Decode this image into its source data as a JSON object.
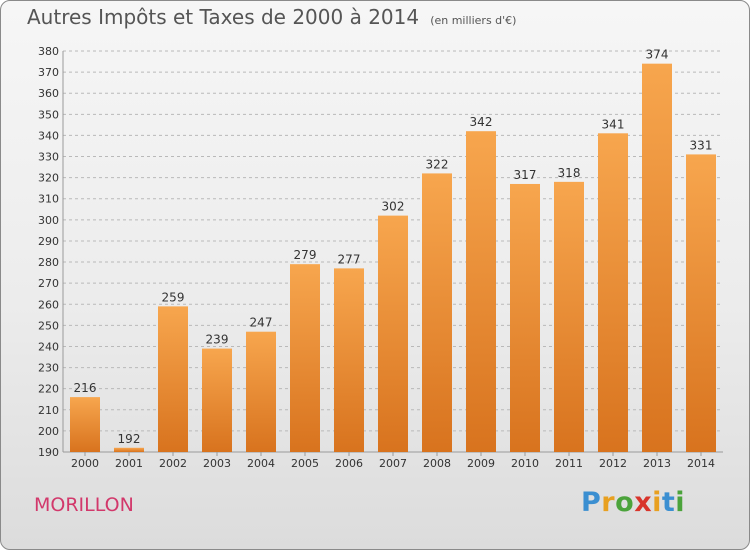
{
  "title": "Autres Impôts et Taxes de 2000 à 2014",
  "unit": "(en milliers d'€)",
  "commune": "MORILLON",
  "logo": {
    "letters": [
      "P",
      "r",
      "o",
      "x",
      "i",
      "t",
      "i"
    ],
    "colors": [
      "#3b8fd1",
      "#e8a020",
      "#4ba33b",
      "#d8342b",
      "#e8a020",
      "#3b8fd1",
      "#4ba33b"
    ]
  },
  "colors": {
    "bar_top": "#f7a64e",
    "bar_bottom": "#d8731e",
    "grid": "#b9b9b9",
    "commune": "#d2386b"
  },
  "chart_data": {
    "type": "bar",
    "categories": [
      "2000",
      "2001",
      "2002",
      "2003",
      "2004",
      "2005",
      "2006",
      "2007",
      "2008",
      "2009",
      "2010",
      "2011",
      "2012",
      "2013",
      "2014"
    ],
    "values": [
      216,
      192,
      259,
      239,
      247,
      279,
      277,
      302,
      322,
      342,
      317,
      318,
      341,
      374,
      331
    ],
    "data_labels": [
      "216",
      "192",
      "259",
      "239",
      "247",
      "279",
      "277",
      "302",
      "322",
      "342",
      "317",
      "318",
      "341",
      "374",
      "331"
    ],
    "y_ticks": [
      "190",
      "200",
      "210",
      "220",
      "230",
      "240",
      "250",
      "260",
      "270",
      "280",
      "290",
      "300",
      "310",
      "320",
      "330",
      "340",
      "350",
      "360",
      "370",
      "380"
    ],
    "ylim": [
      190,
      380
    ],
    "grid": true,
    "title": "Autres Impôts et Taxes de 2000 à 2014",
    "xlabel": "",
    "ylabel": ""
  }
}
